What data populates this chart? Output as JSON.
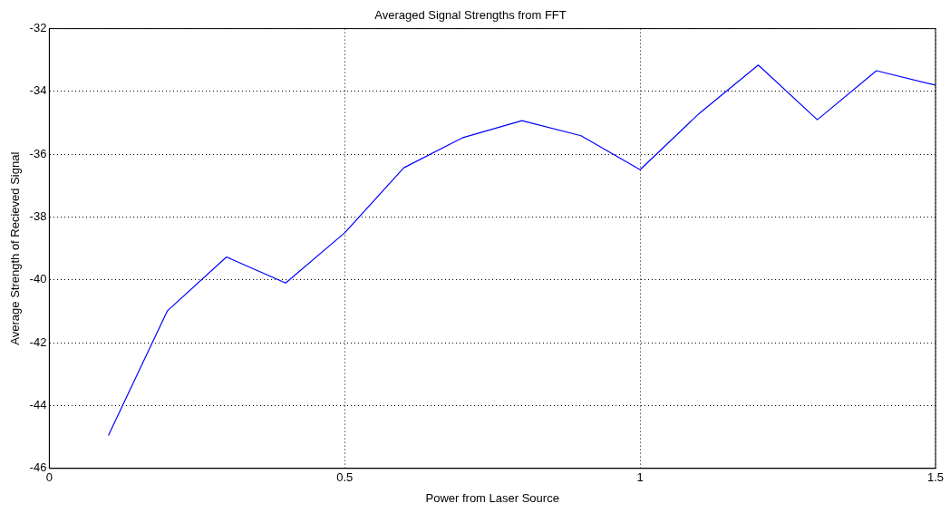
{
  "chart_data": {
    "type": "line",
    "title": "Averaged Signal Strengths from FFT",
    "xlabel": "Power from Laser Source",
    "ylabel": "Average Strength of Recieved Signal",
    "x": [
      0.1,
      0.2,
      0.3,
      0.4,
      0.5,
      0.6,
      0.7,
      0.8,
      0.9,
      1.0,
      1.1,
      1.2,
      1.3,
      1.4,
      1.5
    ],
    "series": [
      {
        "color": "#0000ff",
        "values": [
          -44.95,
          -40.98,
          -39.27,
          -40.1,
          -38.5,
          -36.43,
          -35.47,
          -34.93,
          -35.41,
          -36.49,
          -34.7,
          -33.16,
          -34.9,
          -33.34,
          -33.8
        ]
      }
    ],
    "xlim": [
      0,
      1.5
    ],
    "xticks": [
      0,
      0.5,
      1,
      1.5
    ],
    "ylim": [
      -46,
      -32
    ],
    "yticks": [
      -46,
      -44,
      -42,
      -40,
      -38,
      -36,
      -34,
      -32
    ],
    "grid": true,
    "legend": false,
    "marker": "none",
    "line_style": "solid"
  }
}
